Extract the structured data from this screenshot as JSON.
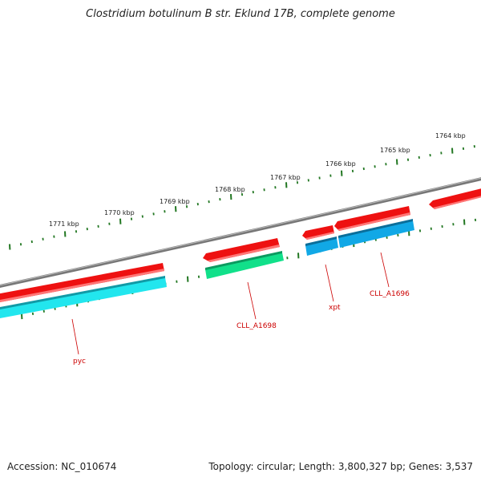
{
  "title": "Clostridium botulinum B str. Eklund 17B, complete genome",
  "footer": {
    "accession": "Accession: NC_010674",
    "summary": "Topology: circular; Length: 3,800,327 bp; Genes: 3,537"
  },
  "colors": {
    "backbone": "#888888",
    "forward_gene": "#ee1111",
    "reverse_gene_cyan": "#22e6ee",
    "reverse_gene_green": "#11e08a",
    "reverse_gene_blue": "#11a8e6",
    "tick": "#227722",
    "label": "#cc0000"
  },
  "scale_labels": [
    "1771 kbp",
    "1770 kbp",
    "1769 kbp",
    "1768 kbp",
    "1767 kbp",
    "1766 kbp",
    "1765 kbp",
    "1764 kbp"
  ],
  "gene_labels": [
    "pyc",
    "CLL_A1698",
    "xpt",
    "CLL_A1696"
  ]
}
